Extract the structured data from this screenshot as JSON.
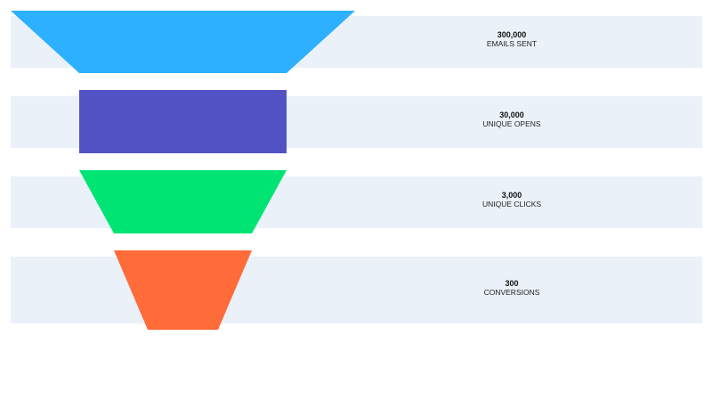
{
  "chart_data": {
    "type": "funnel",
    "stages": [
      {
        "value": "300,000",
        "label": "EMAILS SENT",
        "color": "#2db0ff",
        "band_color": "#eaf1f9"
      },
      {
        "value": "30,000",
        "label": "UNIQUE OPENS",
        "color": "#5352c5",
        "band_color": "#eaf1f9"
      },
      {
        "value": "3,000",
        "label": "UNIQUE CLICKS",
        "color": "#00e474",
        "band_color": "#eaf1f9"
      },
      {
        "value": "300",
        "label": "CONVERSIONS",
        "color": "#ff6b39",
        "band_color": "#eaf1f9"
      }
    ]
  }
}
